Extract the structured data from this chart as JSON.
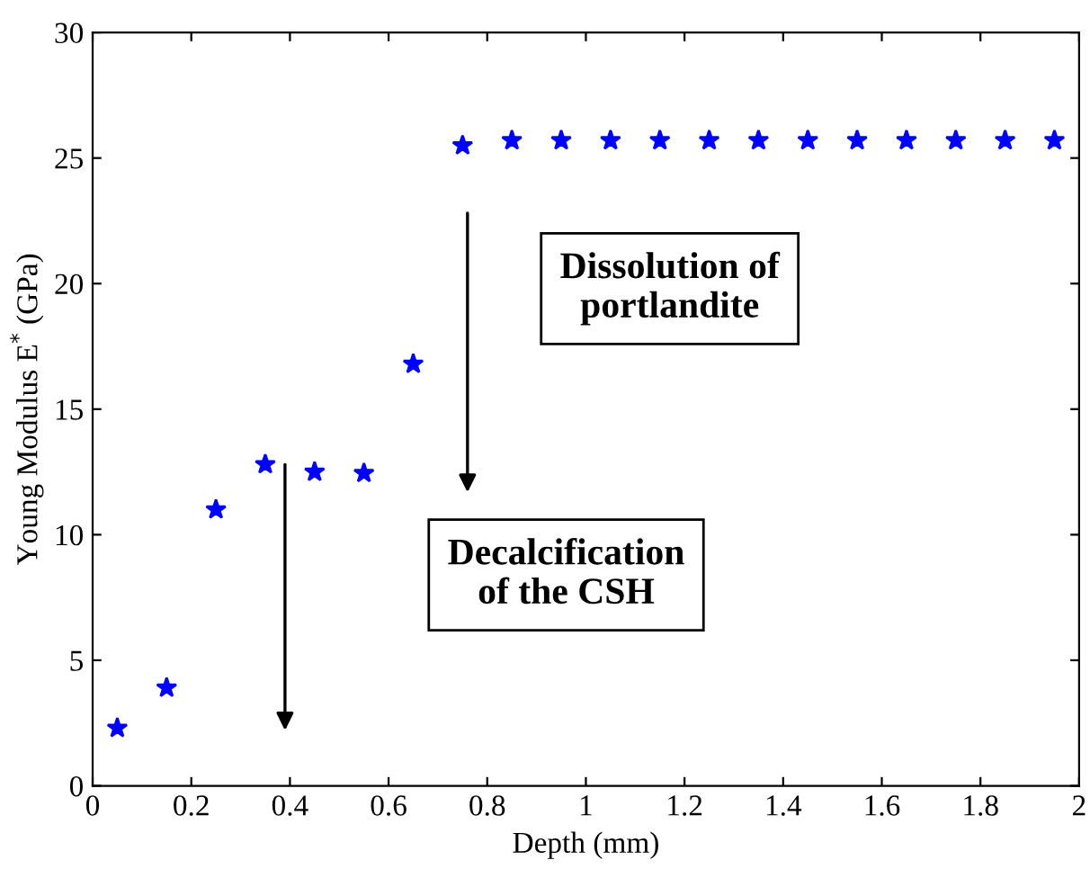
{
  "chart_data": {
    "type": "scatter",
    "xlabel": "Depth (mm)",
    "ylabel": "Young Modulus E$^{*}$ (GPa)",
    "x": [
      0.05,
      0.15,
      0.25,
      0.35,
      0.45,
      0.55,
      0.65,
      0.75,
      0.85,
      0.95,
      1.05,
      1.15,
      1.25,
      1.35,
      1.45,
      1.55,
      1.65,
      1.75,
      1.85,
      1.95
    ],
    "series": [
      {
        "color": "#0000ff",
        "values": [
          2.3,
          3.9,
          11.0,
          12.8,
          12.5,
          12.45,
          16.8,
          25.5,
          25.7,
          25.7,
          25.7,
          25.7,
          25.7,
          25.7,
          25.7,
          25.7,
          25.7,
          25.7,
          25.7,
          25.7
        ]
      }
    ],
    "annotations": [
      "Dissolution of\nportlandite",
      "Decalcification\nof the CSH"
    ],
    "xlim": [
      0,
      2
    ],
    "ylim": [
      0,
      30
    ],
    "xticks": [
      0,
      0.2,
      0.4,
      0.6,
      0.8,
      1,
      1.2,
      1.4,
      1.6,
      1.8,
      2
    ],
    "yticks": [
      0,
      5,
      10,
      15,
      20,
      25,
      30
    ],
    "marker": "star",
    "grid": false,
    "legend": false
  }
}
